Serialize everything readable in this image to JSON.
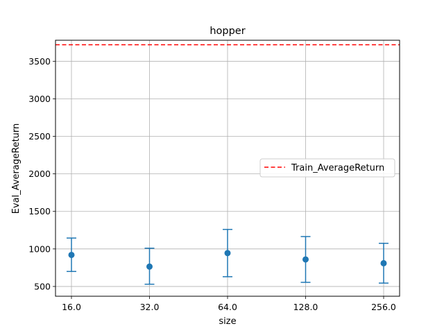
{
  "chart_data": {
    "type": "scatter",
    "title": "hopper",
    "xlabel": "size",
    "ylabel": "Eval_AverageReturn",
    "categories": [
      "16.0",
      "32.0",
      "64.0",
      "128.0",
      "256.0"
    ],
    "series": [
      {
        "values": [
          920,
          765,
          945,
          860,
          810
        ],
        "error_low": [
          700,
          530,
          630,
          555,
          545
        ],
        "error_high": [
          1145,
          1010,
          1260,
          1165,
          1075
        ],
        "color": "#1f77b4"
      }
    ],
    "reference_lines": [
      {
        "name": "Train_AverageReturn",
        "value": 3720,
        "color": "#ff0000",
        "style": "dashed"
      }
    ],
    "ylim": [
      370,
      3780
    ],
    "yticks": [
      500,
      1000,
      1500,
      2000,
      2500,
      3000,
      3500
    ],
    "grid": true,
    "legend_position": "center-right"
  }
}
